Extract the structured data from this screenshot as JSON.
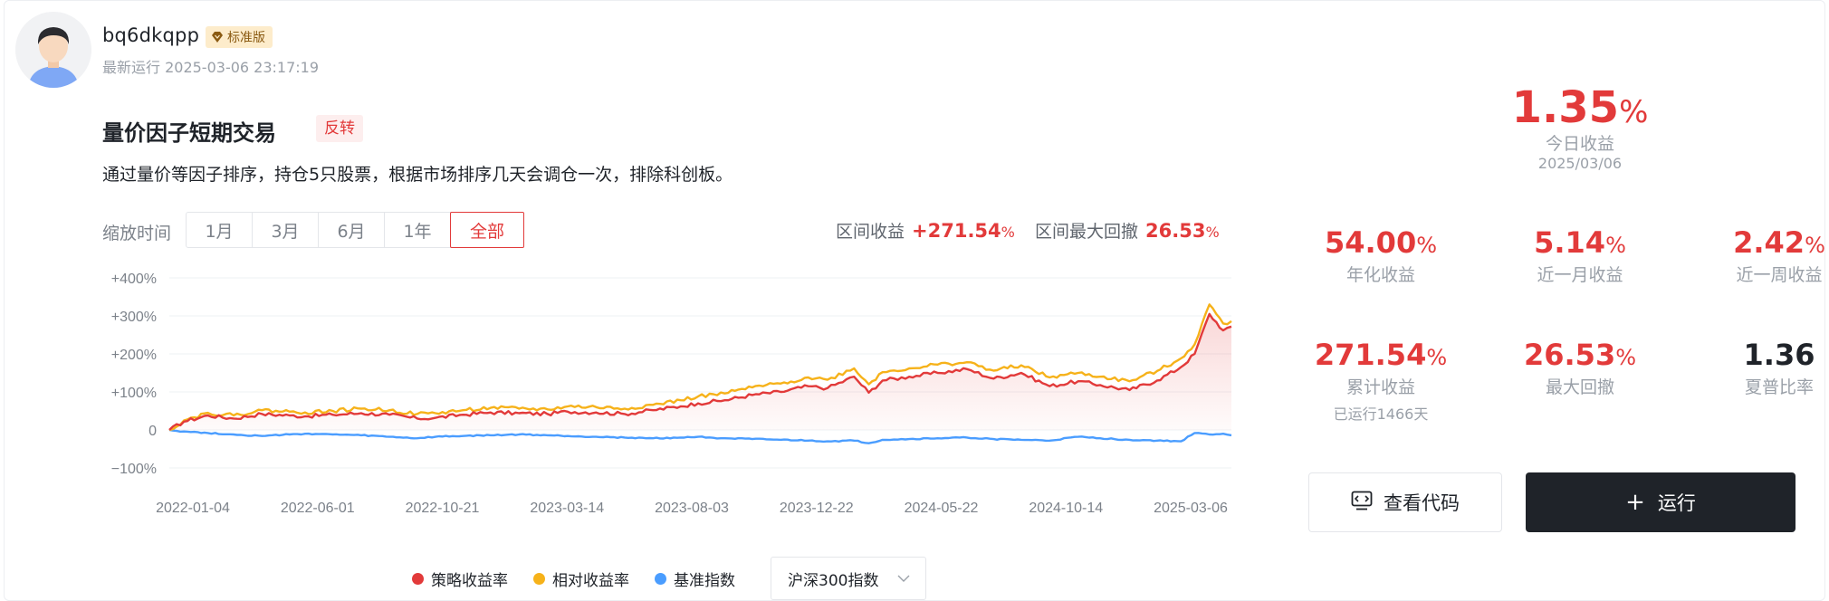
{
  "user": {
    "name": "bq6dkqpp",
    "badge": "标准版",
    "last_run": "最新运行 2025-03-06 23:17:19"
  },
  "strategy": {
    "title": "量价因子短期交易",
    "tag": "反转",
    "description": "通过量价等因子排序，持仓5只股票，根据市场排序几天会调仓一次，排除科创板。"
  },
  "zoom": {
    "label": "缩放时间",
    "options": [
      "1月",
      "3月",
      "6月",
      "1年",
      "全部"
    ],
    "active": "全部"
  },
  "range": {
    "return_label": "区间收益",
    "return_value": "+271.54",
    "max_drawdown_label": "区间最大回撤",
    "max_drawdown_value": "26.53",
    "pct": "%"
  },
  "today": {
    "value": "1.35",
    "pct": "%",
    "label": "今日收益",
    "date": "2025/03/06"
  },
  "metrics": {
    "annual": {
      "value": "54.00",
      "pct": "%",
      "label": "年化收益"
    },
    "month": {
      "value": "5.14",
      "pct": "%",
      "label": "近一月收益"
    },
    "week": {
      "value": "2.42",
      "pct": "%",
      "label": "近一周收益"
    },
    "cumulative": {
      "value": "271.54",
      "pct": "%",
      "label": "累计收益",
      "sub": "已运行1466天"
    },
    "max_drawdown": {
      "value": "26.53",
      "pct": "%",
      "label": "最大回撤"
    },
    "sharpe": {
      "value": "1.36",
      "label": "夏普比率"
    }
  },
  "buttons": {
    "view_code": "查看代码",
    "run": "运行",
    "run_icon": "+"
  },
  "legend": {
    "strategy": "策略收益率",
    "relative": "相对收益率",
    "benchmark": "基准指数",
    "benchmark_select": "沪深300指数"
  },
  "colors": {
    "strategy": "#e23a3a",
    "relative": "#f6b21a",
    "benchmark": "#4a9dff",
    "accent": "#e23a3a"
  },
  "chart_data": {
    "type": "line",
    "y_ticks": [
      "+400%",
      "+300%",
      "+200%",
      "+100%",
      "0",
      "−100%"
    ],
    "y_tick_values": [
      400,
      300,
      200,
      100,
      0,
      -100
    ],
    "ylim": [
      -100,
      400
    ],
    "x_tick_labels": [
      "2022-01-04",
      "2022-06-01",
      "2022-10-21",
      "2023-03-14",
      "2023-08-03",
      "2023-12-22",
      "2024-05-22",
      "2024-10-14",
      "2025-03-06"
    ],
    "x": [
      "2022-01-04",
      "2022-01-20",
      "2022-02-15",
      "2022-03-15",
      "2022-04-15",
      "2022-05-15",
      "2022-06-01",
      "2022-07-01",
      "2022-08-01",
      "2022-09-01",
      "2022-10-01",
      "2022-10-21",
      "2022-11-20",
      "2022-12-20",
      "2023-01-20",
      "2023-02-20",
      "2023-03-14",
      "2023-04-14",
      "2023-05-15",
      "2023-06-15",
      "2023-07-15",
      "2023-08-03",
      "2023-09-01",
      "2023-10-01",
      "2023-11-01",
      "2023-12-01",
      "2023-12-22",
      "2024-01-20",
      "2024-02-05",
      "2024-02-20",
      "2024-03-20",
      "2024-04-20",
      "2024-05-22",
      "2024-06-20",
      "2024-07-20",
      "2024-08-20",
      "2024-09-20",
      "2024-10-14",
      "2024-11-15",
      "2024-12-15",
      "2025-01-10",
      "2025-01-25",
      "2025-02-10",
      "2025-02-25",
      "2025-03-06"
    ],
    "series": [
      {
        "name": "策略收益率",
        "values": [
          0,
          22,
          38,
          30,
          42,
          38,
          36,
          40,
          44,
          40,
          30,
          32,
          40,
          46,
          44,
          42,
          48,
          46,
          42,
          52,
          62,
          70,
          78,
          92,
          100,
          115,
          110,
          140,
          98,
          130,
          140,
          150,
          160,
          135,
          150,
          115,
          128,
          118,
          105,
          130,
          165,
          200,
          305,
          262,
          272
        ]
      },
      {
        "name": "相对收益率",
        "values": [
          0,
          25,
          45,
          38,
          52,
          48,
          46,
          50,
          56,
          52,
          42,
          44,
          52,
          58,
          56,
          54,
          62,
          60,
          56,
          66,
          78,
          88,
          96,
          112,
          122,
          138,
          132,
          162,
          120,
          152,
          162,
          172,
          178,
          156,
          170,
          138,
          150,
          140,
          128,
          155,
          188,
          225,
          330,
          280,
          286
        ]
      },
      {
        "name": "基准指数",
        "values": [
          0,
          -4,
          -8,
          -12,
          -16,
          -12,
          -10,
          -12,
          -14,
          -18,
          -22,
          -18,
          -16,
          -14,
          -12,
          -14,
          -16,
          -18,
          -20,
          -22,
          -20,
          -18,
          -22,
          -24,
          -26,
          -28,
          -30,
          -28,
          -35,
          -26,
          -24,
          -22,
          -20,
          -24,
          -26,
          -28,
          -18,
          -22,
          -26,
          -28,
          -30,
          -8,
          -12,
          -10,
          -14
        ]
      }
    ]
  }
}
